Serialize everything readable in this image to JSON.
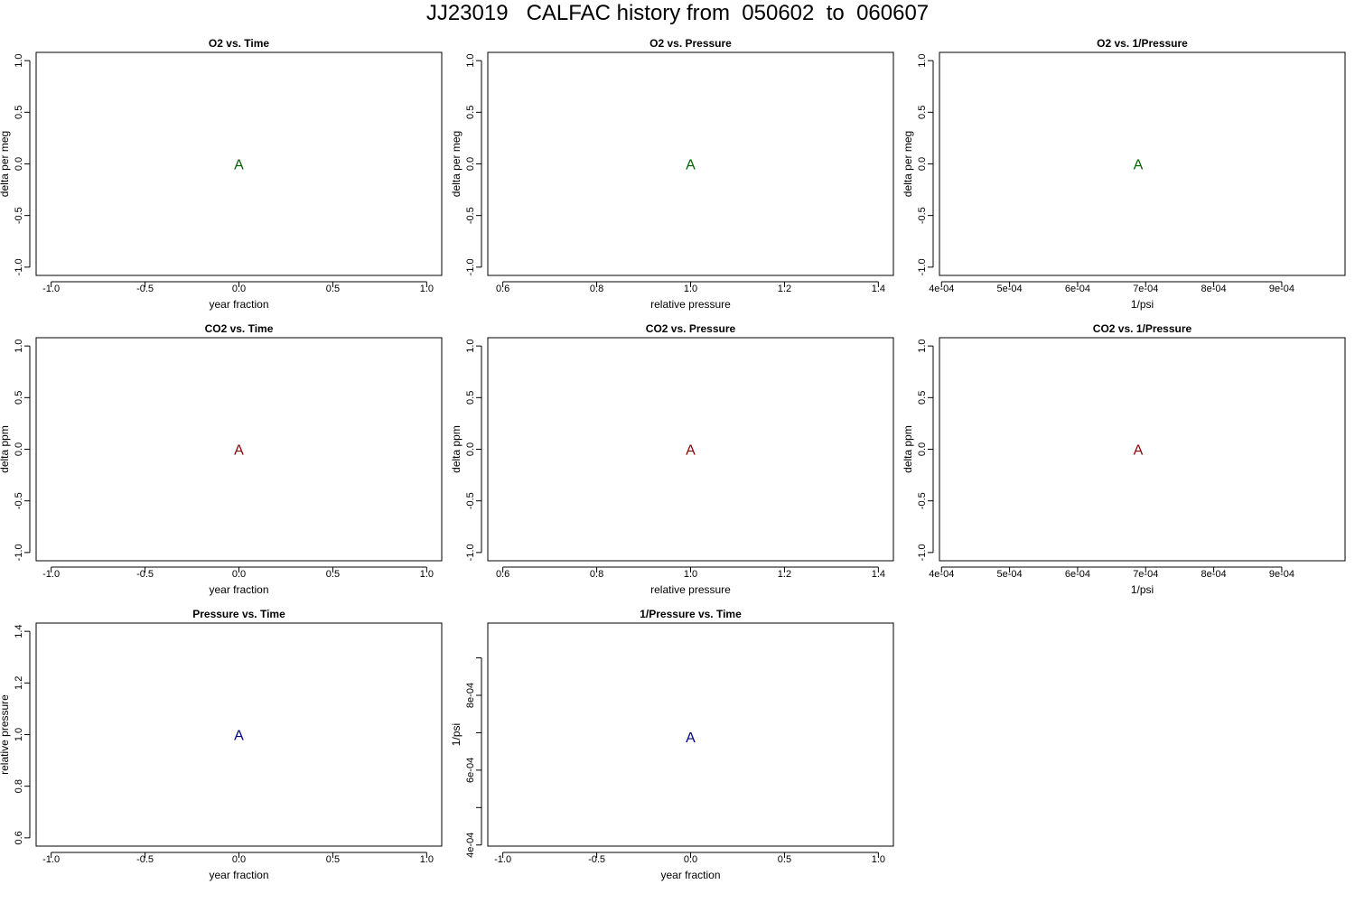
{
  "page_title": "JJ23019   CALFAC history from  050602  to  060607",
  "chart_data": [
    {
      "type": "scatter",
      "title": "O2 vs. Time",
      "xlabel": "year fraction",
      "ylabel": "delta per meg",
      "xlim": [
        -1.08,
        1.08
      ],
      "ylim": [
        -1.08,
        1.08
      ],
      "xticks": [
        -1.0,
        -0.5,
        0.0,
        0.5,
        1.0
      ],
      "xtick_labels": [
        "-1.0",
        "-0.5",
        "0.0",
        "0.5",
        "1.0"
      ],
      "yticks": [
        -1.0,
        -0.5,
        0.0,
        0.5,
        1.0
      ],
      "ytick_labels": [
        "-1.0",
        "-0.5",
        "0.0",
        "0.5",
        "1.0"
      ],
      "points": [
        {
          "x": 0.0,
          "y": 0.0,
          "label": "A",
          "color": "#006400"
        }
      ]
    },
    {
      "type": "scatter",
      "title": "O2 vs. Pressure",
      "xlabel": "relative pressure",
      "ylabel": "delta per meg",
      "xlim": [
        0.568,
        1.432
      ],
      "ylim": [
        -1.08,
        1.08
      ],
      "xticks": [
        0.6,
        0.8,
        1.0,
        1.2,
        1.4
      ],
      "xtick_labels": [
        "0.6",
        "0.8",
        "1.0",
        "1.2",
        "1.4"
      ],
      "yticks": [
        -1.0,
        -0.5,
        0.0,
        0.5,
        1.0
      ],
      "ytick_labels": [
        "-1.0",
        "-0.5",
        "0.0",
        "0.5",
        "1.0"
      ],
      "points": [
        {
          "x": 1.0,
          "y": 0.0,
          "label": "A",
          "color": "#006400"
        }
      ]
    },
    {
      "type": "scatter",
      "title": "O2 vs. 1/Pressure",
      "xlabel": "1/psi",
      "ylabel": "delta per meg",
      "xlim": [
        0.000397,
        0.000993
      ],
      "ylim": [
        -1.08,
        1.08
      ],
      "xticks": [
        0.0004,
        0.0005,
        0.0006,
        0.0007,
        0.0008,
        0.0009
      ],
      "xtick_labels": [
        "4e-04",
        "5e-04",
        "6e-04",
        "7e-04",
        "8e-04",
        "9e-04"
      ],
      "yticks": [
        -1.0,
        -0.5,
        0.0,
        0.5,
        1.0
      ],
      "ytick_labels": [
        "-1.0",
        "-0.5",
        "0.0",
        "0.5",
        "1.0"
      ],
      "points": [
        {
          "x": 0.000689,
          "y": 0.0,
          "label": "A",
          "color": "#006400"
        }
      ]
    },
    {
      "type": "scatter",
      "title": "CO2 vs. Time",
      "xlabel": "year fraction",
      "ylabel": "delta ppm",
      "xlim": [
        -1.08,
        1.08
      ],
      "ylim": [
        -1.08,
        1.08
      ],
      "xticks": [
        -1.0,
        -0.5,
        0.0,
        0.5,
        1.0
      ],
      "xtick_labels": [
        "-1.0",
        "-0.5",
        "0.0",
        "0.5",
        "1.0"
      ],
      "yticks": [
        -1.0,
        -0.5,
        0.0,
        0.5,
        1.0
      ],
      "ytick_labels": [
        "-1.0",
        "-0.5",
        "0.0",
        "0.5",
        "1.0"
      ],
      "points": [
        {
          "x": 0.0,
          "y": 0.0,
          "label": "A",
          "color": "#8b0000"
        }
      ]
    },
    {
      "type": "scatter",
      "title": "CO2 vs. Pressure",
      "xlabel": "relative pressure",
      "ylabel": "delta ppm",
      "xlim": [
        0.568,
        1.432
      ],
      "ylim": [
        -1.08,
        1.08
      ],
      "xticks": [
        0.6,
        0.8,
        1.0,
        1.2,
        1.4
      ],
      "xtick_labels": [
        "0.6",
        "0.8",
        "1.0",
        "1.2",
        "1.4"
      ],
      "yticks": [
        -1.0,
        -0.5,
        0.0,
        0.5,
        1.0
      ],
      "ytick_labels": [
        "-1.0",
        "-0.5",
        "0.0",
        "0.5",
        "1.0"
      ],
      "points": [
        {
          "x": 1.0,
          "y": 0.0,
          "label": "A",
          "color": "#8b0000"
        }
      ]
    },
    {
      "type": "scatter",
      "title": "CO2 vs. 1/Pressure",
      "xlabel": "1/psi",
      "ylabel": "delta ppm",
      "xlim": [
        0.000397,
        0.000993
      ],
      "ylim": [
        -1.08,
        1.08
      ],
      "xticks": [
        0.0004,
        0.0005,
        0.0006,
        0.0007,
        0.0008,
        0.0009
      ],
      "xtick_labels": [
        "4e-04",
        "5e-04",
        "6e-04",
        "7e-04",
        "8e-04",
        "9e-04"
      ],
      "yticks": [
        -1.0,
        -0.5,
        0.0,
        0.5,
        1.0
      ],
      "ytick_labels": [
        "-1.0",
        "-0.5",
        "0.0",
        "0.5",
        "1.0"
      ],
      "points": [
        {
          "x": 0.000689,
          "y": 0.0,
          "label": "A",
          "color": "#8b0000"
        }
      ]
    },
    {
      "type": "scatter",
      "title": "Pressure vs. Time",
      "xlabel": "year fraction",
      "ylabel": "relative pressure",
      "xlim": [
        -1.08,
        1.08
      ],
      "ylim": [
        0.568,
        1.432
      ],
      "xticks": [
        -1.0,
        -0.5,
        0.0,
        0.5,
        1.0
      ],
      "xtick_labels": [
        "-1.0",
        "-0.5",
        "0.0",
        "0.5",
        "1.0"
      ],
      "yticks": [
        0.6,
        0.8,
        1.0,
        1.2,
        1.4
      ],
      "ytick_labels": [
        "0.6",
        "0.8",
        "1.0",
        "1.2",
        "1.4"
      ],
      "points": [
        {
          "x": 0.0,
          "y": 1.0,
          "label": "A",
          "color": "#00008b"
        }
      ]
    },
    {
      "type": "scatter",
      "title": "1/Pressure vs. Time",
      "xlabel": "year fraction",
      "ylabel": "1/psi",
      "xlim": [
        -1.08,
        1.08
      ],
      "ylim": [
        0.000397,
        0.000993
      ],
      "xticks": [
        -1.0,
        -0.5,
        0.0,
        0.5,
        1.0
      ],
      "xtick_labels": [
        "-1.0",
        "-0.5",
        "0.0",
        "0.5",
        "1.0"
      ],
      "yticks": [
        0.0004,
        0.0005,
        0.0006,
        0.0007,
        0.0008,
        0.0009
      ],
      "ytick_labels": [
        "4e-04",
        "",
        "6e-04",
        "",
        "8e-04",
        ""
      ],
      "points": [
        {
          "x": 0.0,
          "y": 0.000689,
          "label": "A",
          "color": "#00008b"
        }
      ]
    }
  ]
}
